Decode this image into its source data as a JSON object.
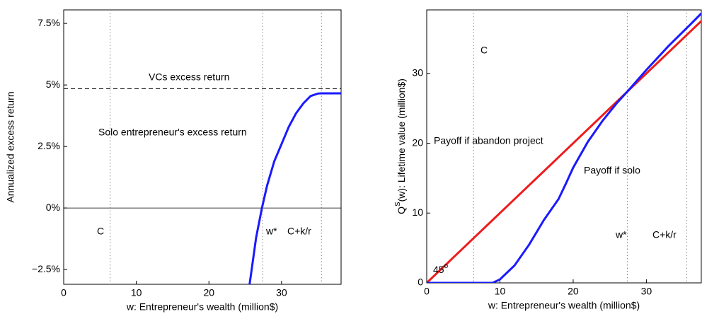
{
  "chart_data": [
    {
      "type": "line",
      "xlabel": "w: Entrepreneur's wealth (million$)",
      "ylabel": "Annualized excess return",
      "xlim": [
        0,
        38.2
      ],
      "ylim": [
        -3.1,
        8.05
      ],
      "xticks": [
        0,
        10,
        20,
        30
      ],
      "yticks": [
        {
          "value": -2.5,
          "label": "−2.5%"
        },
        {
          "value": 0,
          "label": "0%"
        },
        {
          "value": 2.5,
          "label": "2.5%"
        },
        {
          "value": 5,
          "label": "5%"
        },
        {
          "value": 7.5,
          "label": "7.5%"
        }
      ],
      "zero_line": 0,
      "hline": 4.85,
      "vlines": [
        6.4,
        27.4,
        35.5
      ],
      "series": [
        {
          "color": "#1a1aff",
          "x": [
            25.6,
            26.5,
            27.3,
            28,
            29,
            30,
            31,
            32,
            33,
            34,
            35,
            35.4,
            38.2
          ],
          "values": [
            -3.1,
            -1.2,
            0,
            0.9,
            1.9,
            2.6,
            3.3,
            3.85,
            4.25,
            4.55,
            4.65,
            4.66,
            4.66
          ]
        }
      ],
      "annotations": [
        "VCs excess return",
        "Solo entrepreneur's excess return",
        "C",
        "w*",
        "C+k/r"
      ]
    },
    {
      "type": "line",
      "xlabel": "w: Entrepreneur's wealth (million$)",
      "ylabel": {
        "base": "Q",
        "sup": "S",
        "rest": "(w): Lifetime value (million$)"
      },
      "xlim": [
        0,
        37.5
      ],
      "ylim": [
        0,
        39.1
      ],
      "xticks": [
        0,
        10,
        20,
        30
      ],
      "yticks": [
        0,
        10,
        20,
        30
      ],
      "vlines": [
        6.4,
        27.4,
        35.5
      ],
      "series": [
        {
          "color": "#ee1c1c",
          "x": [
            0,
            37.5
          ],
          "values": [
            0,
            37.5
          ]
        },
        {
          "color": "#1a1aff",
          "x": [
            0,
            9,
            10,
            12,
            14,
            16,
            18,
            19,
            20,
            22,
            24,
            26,
            27.4,
            30,
            33,
            36,
            37.5
          ],
          "values": [
            0,
            0,
            0.5,
            2.5,
            5.5,
            9,
            12,
            14.2,
            16.5,
            20.2,
            23.2,
            25.8,
            27.4,
            30.5,
            33.9,
            37,
            38.6
          ]
        }
      ],
      "annotations": [
        "C",
        "Payoff if abandon project",
        "Payoff if solo",
        "w*",
        "C+k/r"
      ],
      "angle_label": {
        "base": "45",
        "sup": "o"
      }
    }
  ]
}
